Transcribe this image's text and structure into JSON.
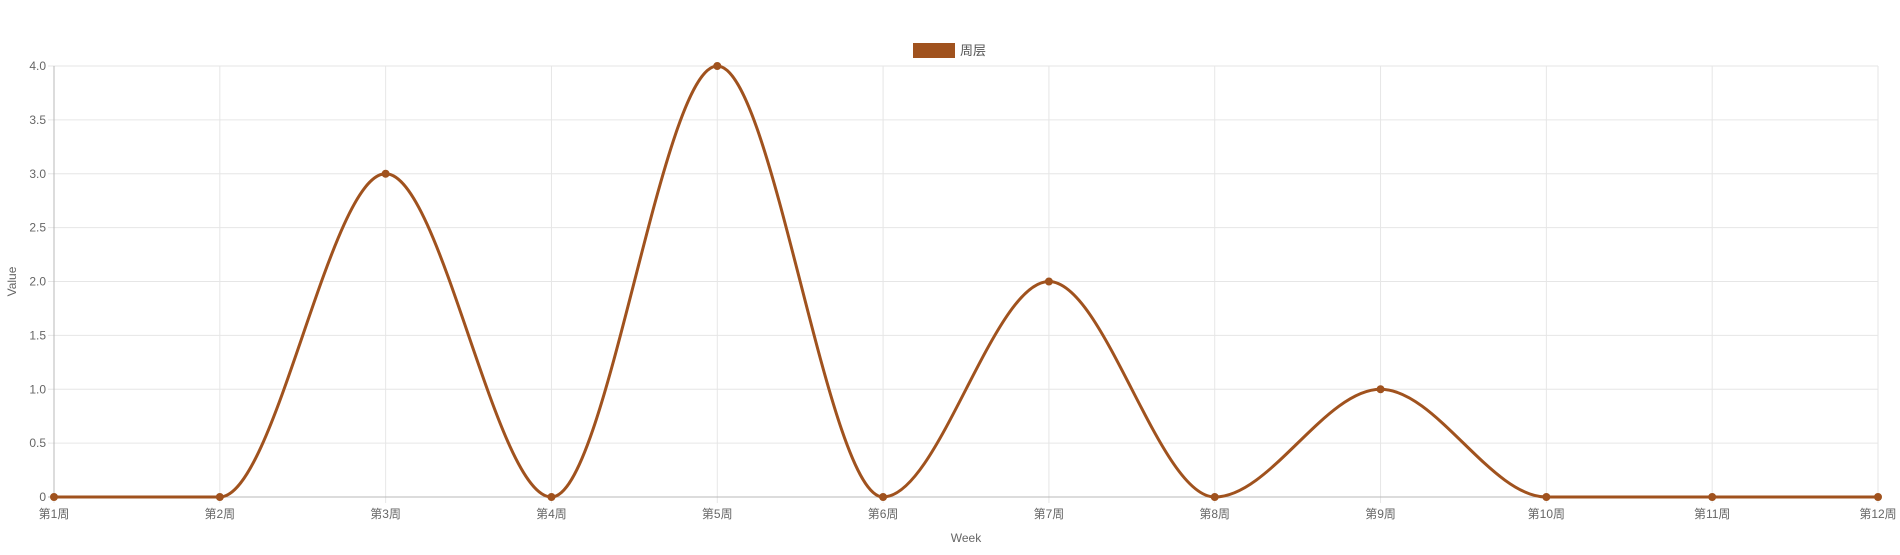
{
  "chart_data": {
    "type": "line",
    "smooth": true,
    "title": "",
    "xlabel": "Week",
    "ylabel": "Value",
    "categories": [
      "第1周",
      "第2周",
      "第3周",
      "第4周",
      "第5周",
      "第6周",
      "第7周",
      "第8周",
      "第9周",
      "第10周",
      "第11周",
      "第12周"
    ],
    "ylim": [
      0,
      4
    ],
    "yticks": [
      0,
      0.5,
      1,
      1.5,
      2,
      2.5,
      3,
      3.5,
      4
    ],
    "ytick_labels": [
      "0",
      "0.5",
      "1.0",
      "1.5",
      "2.0",
      "2.5",
      "3.0",
      "3.5",
      "4.0"
    ],
    "grid": true,
    "legend_position": "top-center",
    "series": [
      {
        "name": "周层",
        "color": "#a0521e",
        "values": [
          0,
          0,
          3,
          0,
          4,
          0,
          2,
          0,
          1,
          0,
          0,
          0
        ]
      }
    ]
  }
}
